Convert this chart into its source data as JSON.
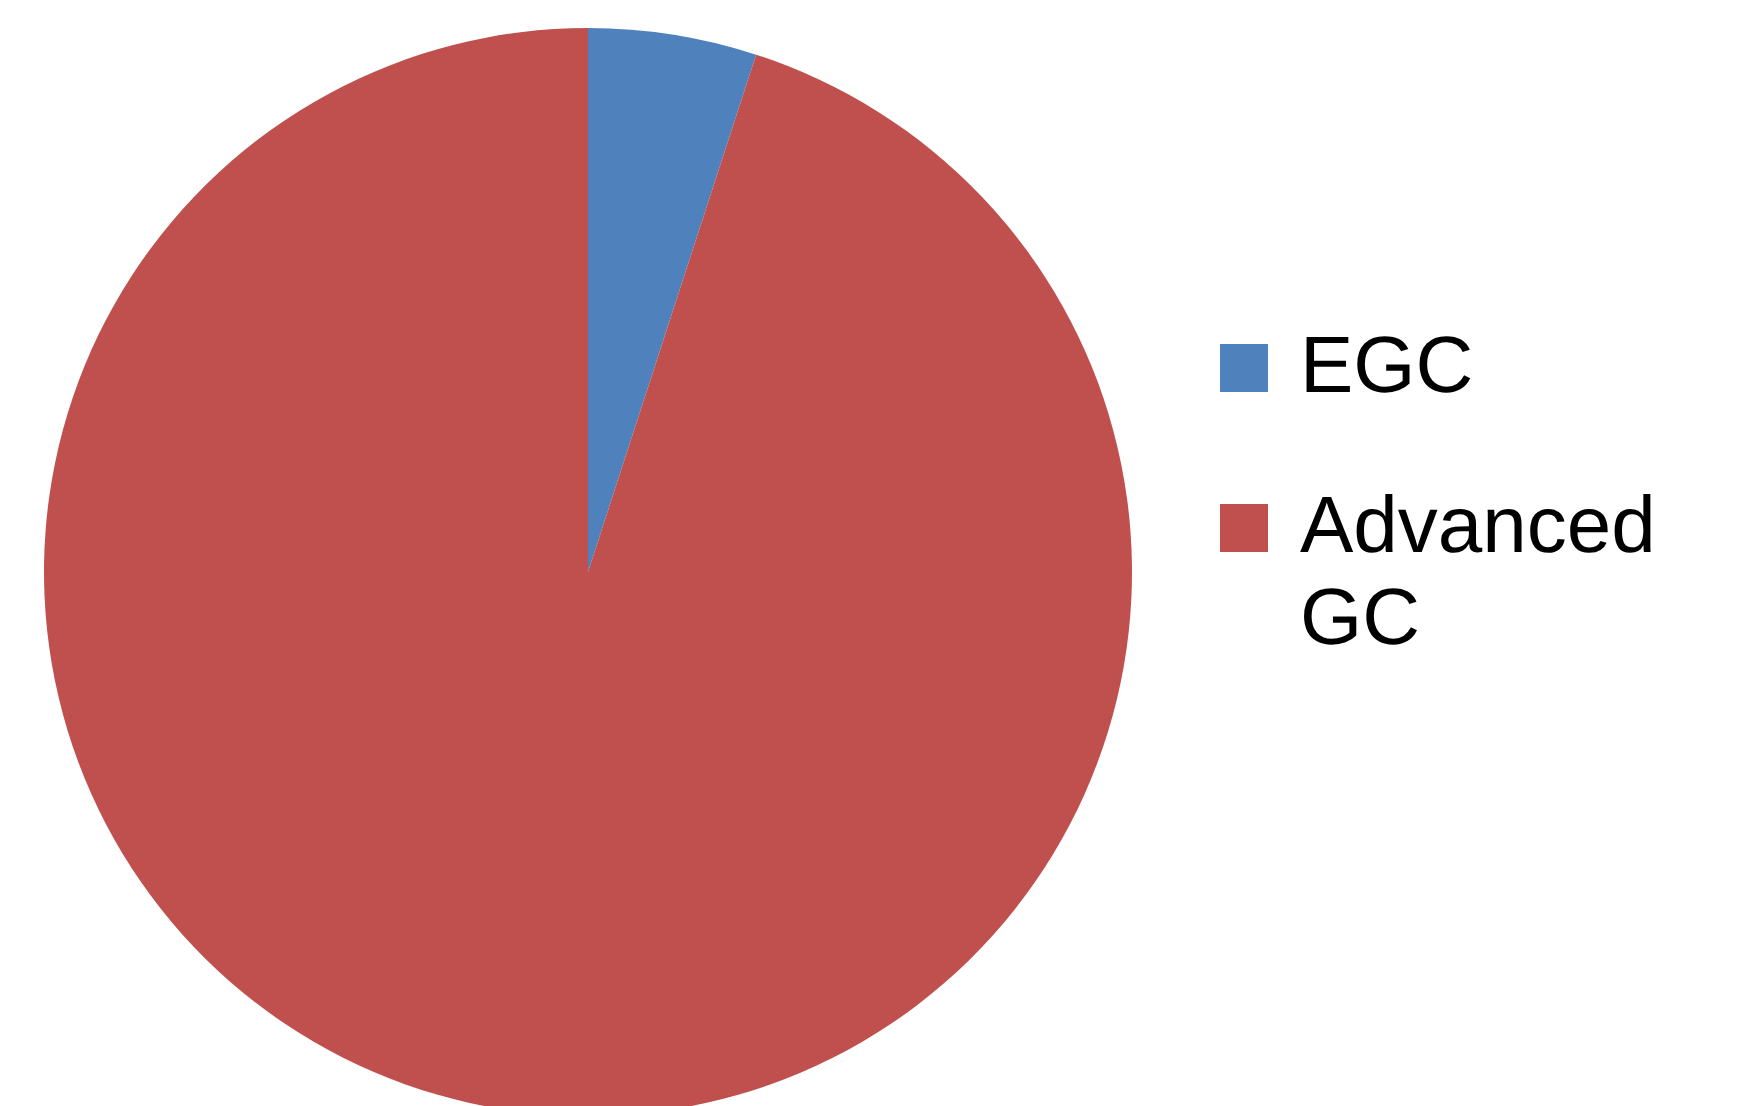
{
  "chart_data": {
    "type": "pie",
    "categories": [
      "EGC",
      "Advanced GC"
    ],
    "values": [
      5,
      95
    ],
    "colors": [
      "#4f81bd",
      "#c0504d"
    ],
    "legend": "right"
  }
}
